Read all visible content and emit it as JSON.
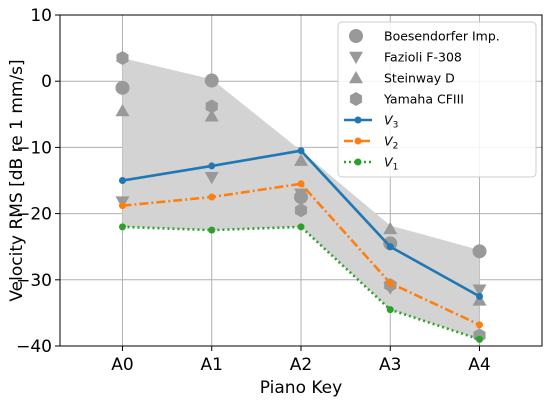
{
  "chart_data": {
    "type": "line",
    "xlabel": "Piano Key",
    "ylabel": "Velocity RMS [dB re 1 mm/s]",
    "categories": [
      "A0",
      "A1",
      "A2",
      "A3",
      "A4"
    ],
    "ylim": [
      -40,
      10
    ],
    "yticks": [
      10,
      0,
      -10,
      -20,
      -30,
      -40
    ],
    "ytick_labels": [
      "10",
      "0",
      "−10",
      "−20",
      "−30",
      "−40"
    ],
    "grid": true,
    "legend_position": "top-right",
    "band": {
      "upper": [
        3.5,
        0.3,
        -10.5,
        -21.8,
        -25.5
      ],
      "lower": [
        -22,
        -22.5,
        -22,
        -34.5,
        -39
      ],
      "color": "#d3d3d3"
    },
    "pianos": [
      {
        "name": "Boesendorfer Imp.",
        "marker": "circle",
        "values": [
          -1,
          0.1,
          -17.5,
          -24.5,
          -25.7
        ]
      },
      {
        "name": "Fazioli F-308",
        "marker": "triangle-down",
        "values": [
          -18.2,
          -14.5,
          -17,
          -31.2,
          -31.5
        ]
      },
      {
        "name": "Steinway D",
        "marker": "triangle-up",
        "values": [
          -4.5,
          -5.3,
          -12,
          -22.3,
          -33.1
        ]
      },
      {
        "name": "Yamaha CFIII",
        "marker": "hexagon",
        "values": [
          3.5,
          -3.8,
          -19.5,
          -30.8,
          -38.4
        ]
      }
    ],
    "series": [
      {
        "name": "V_3",
        "color": "#1f77b4",
        "dash": "solid",
        "values": [
          -15,
          -12.8,
          -10.5,
          -25,
          -32.5
        ]
      },
      {
        "name": "V_2",
        "color": "#ff7f0e",
        "dash": "dashdot",
        "values": [
          -18.8,
          -17.5,
          -15.5,
          -30.5,
          -36.8
        ]
      },
      {
        "name": "V_1",
        "color": "#2ca02c",
        "dash": "dotted",
        "values": [
          -22,
          -22.5,
          -22,
          -34.5,
          -39
        ]
      }
    ],
    "marker_color": "#999999"
  }
}
